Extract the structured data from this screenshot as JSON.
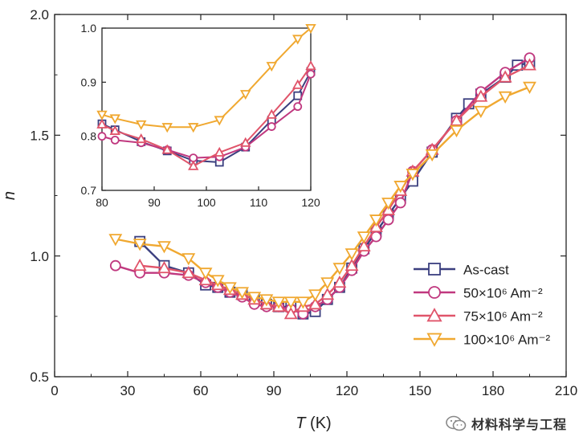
{
  "chart_data": [
    {
      "type": "line",
      "role": "main",
      "title": "",
      "xlabel_symbol": "T",
      "xlabel_unit": " (K)",
      "ylabel": "n",
      "xlim": [
        0,
        210
      ],
      "ylim": [
        0.5,
        2.0
      ],
      "xticks": [
        "0",
        "30",
        "60",
        "90",
        "120",
        "150",
        "180",
        "210"
      ],
      "yticks": [
        "0.5",
        "1.0",
        "1.5",
        "2.0"
      ],
      "legend_position": "lower-right",
      "series": [
        {
          "name": "As-cast",
          "color": "#3b3f7f",
          "marker": "square",
          "x": [
            35,
            45,
            55,
            62,
            67,
            72,
            77,
            82,
            87,
            92,
            97,
            102,
            107,
            112,
            117,
            122,
            127,
            132,
            137,
            142,
            147,
            155,
            165,
            170,
            175,
            185,
            190,
            195
          ],
          "y": [
            1.06,
            0.96,
            0.93,
            0.88,
            0.87,
            0.85,
            0.84,
            0.82,
            0.8,
            0.79,
            0.79,
            0.76,
            0.77,
            0.82,
            0.87,
            0.95,
            1.03,
            1.1,
            1.17,
            1.24,
            1.31,
            1.43,
            1.57,
            1.63,
            1.67,
            1.74,
            1.79,
            1.8
          ]
        },
        {
          "name": "50×10⁶ Am⁻²",
          "color": "#c0387f",
          "marker": "circle",
          "x": [
            25,
            35,
            45,
            55,
            62,
            67,
            72,
            77,
            82,
            87,
            92,
            97,
            102,
            107,
            112,
            117,
            122,
            127,
            132,
            137,
            142,
            147,
            155,
            165,
            175,
            185,
            195
          ],
          "y": [
            0.96,
            0.93,
            0.93,
            0.92,
            0.89,
            0.87,
            0.85,
            0.83,
            0.8,
            0.79,
            0.79,
            0.78,
            0.76,
            0.79,
            0.82,
            0.87,
            0.94,
            1.02,
            1.08,
            1.15,
            1.22,
            1.35,
            1.44,
            1.56,
            1.68,
            1.76,
            1.82
          ]
        },
        {
          "name": "75×10⁶ Am⁻²",
          "color": "#e0546a",
          "marker": "triangle-up",
          "x": [
            35,
            45,
            55,
            62,
            67,
            72,
            77,
            82,
            87,
            92,
            97,
            102,
            107,
            112,
            117,
            122,
            127,
            132,
            137,
            142,
            147,
            155,
            165,
            175,
            185,
            195
          ],
          "y": [
            0.96,
            0.95,
            0.93,
            0.9,
            0.88,
            0.86,
            0.84,
            0.82,
            0.8,
            0.79,
            0.76,
            0.79,
            0.8,
            0.84,
            0.89,
            0.96,
            1.04,
            1.12,
            1.19,
            1.27,
            1.35,
            1.44,
            1.56,
            1.66,
            1.74,
            1.79
          ]
        },
        {
          "name": "100×10⁶ Am⁻²",
          "color": "#f0a830",
          "marker": "triangle-down",
          "x": [
            25,
            35,
            45,
            55,
            62,
            67,
            72,
            77,
            82,
            87,
            92,
            97,
            102,
            107,
            112,
            117,
            122,
            127,
            132,
            137,
            142,
            147,
            155,
            165,
            175,
            185,
            195
          ],
          "y": [
            1.07,
            1.05,
            1.04,
            0.99,
            0.93,
            0.9,
            0.87,
            0.85,
            0.83,
            0.82,
            0.81,
            0.81,
            0.81,
            0.84,
            0.89,
            0.95,
            1.01,
            1.08,
            1.15,
            1.22,
            1.29,
            1.34,
            1.42,
            1.52,
            1.6,
            1.66,
            1.7
          ]
        }
      ]
    },
    {
      "type": "line",
      "role": "inset",
      "xlim": [
        80,
        120
      ],
      "ylim": [
        0.7,
        1.0
      ],
      "xticks": [
        "80",
        "90",
        "100",
        "110",
        "120"
      ],
      "yticks": [
        "0.7",
        "0.8",
        "0.9",
        "1.0"
      ],
      "series": [
        {
          "name": "As-cast",
          "color": "#3b3f7f",
          "marker": "square",
          "x": [
            80,
            82.5,
            87.5,
            92.5,
            97.5,
            102.5,
            107.5,
            112.5,
            117.5,
            120
          ],
          "y": [
            0.823,
            0.812,
            0.79,
            0.773,
            0.755,
            0.752,
            0.78,
            0.83,
            0.875,
            0.92
          ]
        },
        {
          "name": "50×10⁶ Am⁻²",
          "color": "#c0387f",
          "marker": "circle",
          "x": [
            80,
            82.5,
            87.5,
            92.5,
            97.5,
            102.5,
            107.5,
            112.5,
            117.5,
            120
          ],
          "y": [
            0.8,
            0.793,
            0.788,
            0.775,
            0.76,
            0.762,
            0.78,
            0.818,
            0.855,
            0.915
          ]
        },
        {
          "name": "75×10⁶ Am⁻²",
          "color": "#e0546a",
          "marker": "triangle-up",
          "x": [
            80,
            82.5,
            87.5,
            92.5,
            97.5,
            102.5,
            107.5,
            112.5,
            117.5,
            120
          ],
          "y": [
            0.822,
            0.81,
            0.795,
            0.775,
            0.745,
            0.77,
            0.788,
            0.84,
            0.895,
            0.93
          ]
        },
        {
          "name": "100×10⁶ Am⁻²",
          "color": "#f0a830",
          "marker": "triangle-down",
          "x": [
            80,
            82.5,
            87.5,
            92.5,
            97.5,
            102.5,
            107.5,
            112.5,
            117.5,
            120
          ],
          "y": [
            0.84,
            0.833,
            0.822,
            0.817,
            0.817,
            0.83,
            0.878,
            0.93,
            0.98,
            1.0
          ]
        }
      ]
    }
  ],
  "watermark": {
    "text": "材料科学与工程"
  }
}
